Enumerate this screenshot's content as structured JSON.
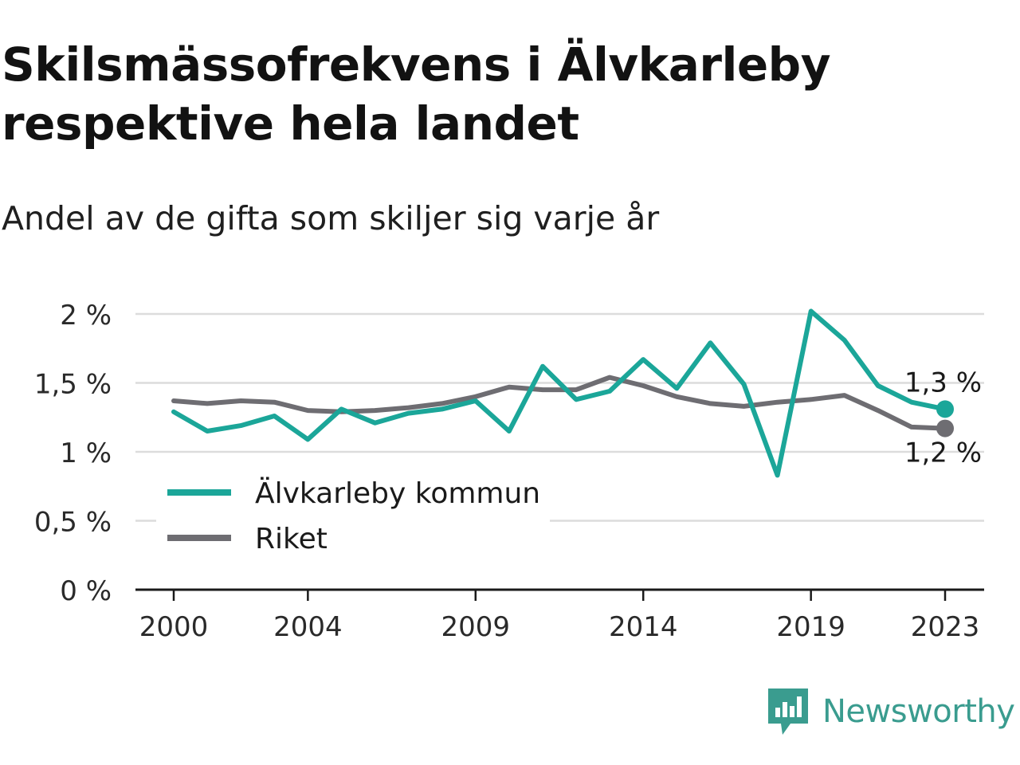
{
  "header": {
    "title": "Skilsmässofrekvens i Älvkarleby respektive hela landet",
    "subtitle": "Andel av de gifta som skiljer sig varje år"
  },
  "brand": {
    "name": "Newsworthy",
    "icon": "newsworthy-logo-icon"
  },
  "colors": {
    "alvkarleby": "#1ba699",
    "riket": "#6e6d72",
    "grid": "#dcdcdc",
    "axis": "#1a1a1a"
  },
  "chart_data": {
    "type": "line",
    "x": [
      2000,
      2001,
      2002,
      2003,
      2004,
      2005,
      2006,
      2007,
      2008,
      2009,
      2010,
      2011,
      2012,
      2013,
      2014,
      2015,
      2016,
      2017,
      2018,
      2019,
      2020,
      2021,
      2022,
      2023
    ],
    "series": [
      {
        "name": "Älvkarleby kommun",
        "color": "#1ba699",
        "values": [
          1.29,
          1.15,
          1.19,
          1.26,
          1.09,
          1.31,
          1.21,
          1.28,
          1.31,
          1.37,
          1.15,
          1.62,
          1.38,
          1.44,
          1.67,
          1.46,
          1.79,
          1.49,
          0.83,
          2.02,
          1.81,
          1.48,
          1.36,
          1.31
        ]
      },
      {
        "name": "Riket",
        "color": "#6e6d72",
        "values": [
          1.37,
          1.35,
          1.37,
          1.36,
          1.3,
          1.29,
          1.3,
          1.32,
          1.35,
          1.4,
          1.47,
          1.45,
          1.45,
          1.54,
          1.48,
          1.4,
          1.35,
          1.33,
          1.36,
          1.38,
          1.41,
          1.3,
          1.18,
          1.17
        ]
      }
    ],
    "end_labels": [
      "1,3 %",
      "1,2 %"
    ],
    "ylim": [
      0,
      2
    ],
    "yticks": [
      0,
      0.5,
      1,
      1.5,
      2
    ],
    "ytick_labels": [
      "0 %",
      "0,5 %",
      "1 %",
      "1,5 %",
      "2 %"
    ],
    "xticks": [
      2000,
      2004,
      2009,
      2014,
      2019,
      2023
    ],
    "xtick_labels": [
      "2000",
      "2004",
      "2009",
      "2014",
      "2019",
      "2023"
    ],
    "grid": true,
    "legend": "bottom-left",
    "xlabel": "",
    "ylabel": ""
  }
}
